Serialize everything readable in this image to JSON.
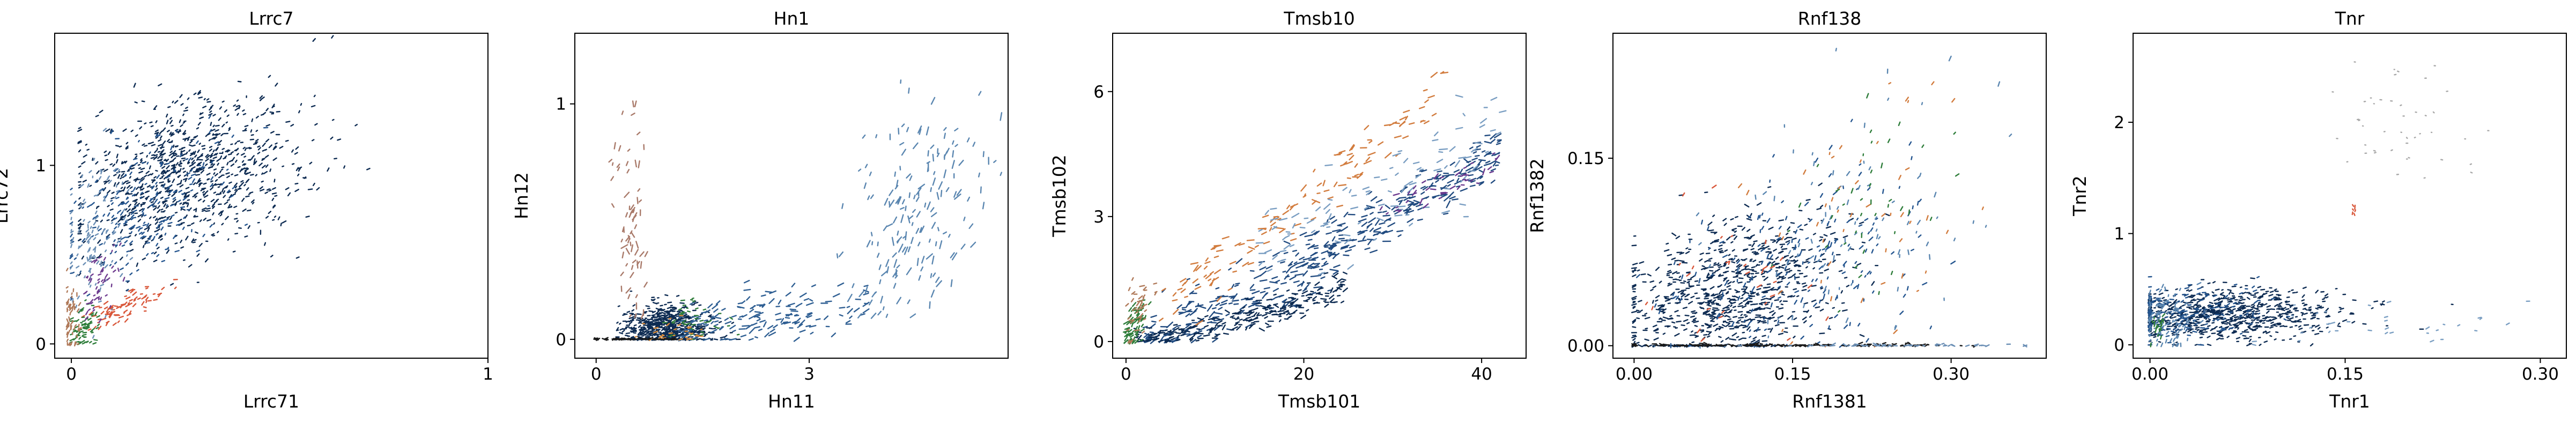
{
  "chart_data": [
    {
      "type": "scatter",
      "title": "Lrrc7",
      "xlabel": "Lrrc71",
      "ylabel": "Lrrc72",
      "xlim": [
        -0.04,
        1.0
      ],
      "ylim": [
        -0.08,
        1.74
      ],
      "xticks": [
        {
          "v": 0,
          "label": "0"
        },
        {
          "v": 1,
          "label": "1"
        }
      ],
      "yticks": [
        {
          "v": 0,
          "label": "0"
        },
        {
          "v": 1,
          "label": "1"
        }
      ],
      "series": [
        {
          "color": "#0d2b52",
          "n": 900,
          "dist": {
            "xc": 0.28,
            "yc": 0.95,
            "sx": 0.13,
            "sy": 0.22,
            "rho": 0.3,
            "xmin": 0.02,
            "xmax": 0.95,
            "ymin": 0.0,
            "ymax": 1.72
          },
          "arrow": {
            "angle": -35,
            "len": 5
          }
        },
        {
          "color": "#24558f",
          "n": 220,
          "dist": {
            "xc": 0.18,
            "yc": 0.78,
            "sx": 0.1,
            "sy": 0.2,
            "rho": 0.4,
            "xmin": 0.0,
            "xmax": 0.6,
            "ymin": 0.0,
            "ymax": 1.5
          },
          "arrow": {
            "angle": -40,
            "len": 5
          }
        },
        {
          "color": "#6b8fb5",
          "n": 120,
          "dist": {
            "xc": 0.06,
            "yc": 0.6,
            "sx": 0.04,
            "sy": 0.22,
            "rho": 0.2,
            "xmin": 0.0,
            "xmax": 0.3,
            "ymin": 0.0,
            "ymax": 1.2
          },
          "arrow": {
            "angle": -60,
            "len": 5
          }
        },
        {
          "color": "#d9573a",
          "n": 80,
          "dist": {
            "xc": 0.12,
            "yc": 0.2,
            "sx": 0.05,
            "sy": 0.06,
            "rho": 0.8,
            "xmin": 0.02,
            "xmax": 0.25,
            "ymin": 0.0,
            "ymax": 0.45
          },
          "arrow": {
            "angle": -30,
            "len": 6
          }
        },
        {
          "color": "#2e7d3a",
          "n": 70,
          "dist": {
            "xc": 0.03,
            "yc": 0.1,
            "sx": 0.02,
            "sy": 0.06,
            "rho": 0.3,
            "xmin": 0.0,
            "xmax": 0.1,
            "ymin": 0.0,
            "ymax": 0.3
          },
          "arrow": {
            "angle": -20,
            "len": 5
          }
        },
        {
          "color": "#6f3c8f",
          "n": 50,
          "dist": {
            "xc": 0.07,
            "yc": 0.35,
            "sx": 0.03,
            "sy": 0.1,
            "rho": 0.5,
            "xmin": 0.0,
            "xmax": 0.18,
            "ymin": 0.1,
            "ymax": 0.6
          },
          "arrow": {
            "angle": -50,
            "len": 5
          }
        },
        {
          "color": "#b07a5a",
          "n": 60,
          "dist": {
            "xc": 0.0,
            "yc": 0.15,
            "sx": 0.01,
            "sy": 0.1,
            "rho": 0.0,
            "xmin": -0.01,
            "xmax": 0.02,
            "ymin": 0.0,
            "ymax": 0.5
          },
          "arrow": {
            "angle": -80,
            "len": 5
          }
        }
      ]
    },
    {
      "type": "scatter",
      "title": "Hn1",
      "xlabel": "Hn11",
      "ylabel": "Hn12",
      "xlim": [
        -0.3,
        5.8
      ],
      "ylim": [
        -0.08,
        1.3
      ],
      "xticks": [
        {
          "v": 0,
          "label": "0"
        },
        {
          "v": 3,
          "label": "3"
        }
      ],
      "yticks": [
        {
          "v": 0,
          "label": "0"
        },
        {
          "v": 1,
          "label": "1"
        }
      ],
      "series": [
        {
          "color": "#0d2b52",
          "n": 650,
          "dist": {
            "xc": 1.0,
            "yc": 0.05,
            "sx": 0.32,
            "sy": 0.05,
            "rho": 0.0,
            "xmin": 0.3,
            "xmax": 2.0,
            "ymin": 0.0,
            "ymax": 0.22
          },
          "arrow": {
            "angle": -10,
            "len": 5
          }
        },
        {
          "color": "#2f5f93",
          "n": 160,
          "dist": {
            "xc": 2.4,
            "yc": 0.1,
            "sx": 0.7,
            "sy": 0.06,
            "rho": 0.5,
            "xmin": 1.2,
            "xmax": 3.8,
            "ymin": 0.0,
            "ymax": 0.35
          },
          "arrow": {
            "angle": -20,
            "len": 9
          }
        },
        {
          "color": "#5a86b0",
          "n": 180,
          "dist": {
            "xc": 4.5,
            "yc": 0.55,
            "sx": 0.45,
            "sy": 0.25,
            "rho": 0.4,
            "xmin": 3.2,
            "xmax": 5.7,
            "ymin": 0.1,
            "ymax": 1.1
          },
          "arrow": {
            "angle": -65,
            "len": 10
          }
        },
        {
          "color": "#a97a6a",
          "n": 70,
          "dist": {
            "xc": 0.5,
            "yc": 0.55,
            "sx": 0.12,
            "sy": 0.25,
            "rho": -0.3,
            "xmin": 0.2,
            "xmax": 0.9,
            "ymin": 0.1,
            "ymax": 1.0
          },
          "arrow": {
            "angle": -70,
            "len": 9
          }
        },
        {
          "color": "#2e7d3a",
          "n": 40,
          "dist": {
            "xc": 1.3,
            "yc": 0.08,
            "sx": 0.25,
            "sy": 0.04,
            "rho": 0.0,
            "xmin": 0.8,
            "xmax": 2.0,
            "ymin": 0.0,
            "ymax": 0.18
          },
          "arrow": {
            "angle": -10,
            "len": 5
          }
        },
        {
          "color": "#d98b3a",
          "n": 30,
          "dist": {
            "xc": 1.1,
            "yc": 0.04,
            "sx": 0.3,
            "sy": 0.03,
            "rho": 0.0,
            "xmin": 0.4,
            "xmax": 1.8,
            "ymin": 0.0,
            "ymax": 0.12
          },
          "arrow": {
            "angle": -5,
            "len": 5
          }
        },
        {
          "color": "#1a1a1a",
          "n": 60,
          "dist": {
            "xc": 0.5,
            "yc": 0.0,
            "sx": 0.4,
            "sy": 0.003,
            "rho": 0.0,
            "xmin": 0.0,
            "xmax": 1.1,
            "ymin": 0.0,
            "ymax": 0.01
          },
          "arrow": {
            "angle": 0,
            "len": 6
          }
        }
      ]
    },
    {
      "type": "scatter",
      "title": "Tmsb10",
      "xlabel": "Tmsb101",
      "ylabel": "Tmsb102",
      "xlim": [
        -1.5,
        45
      ],
      "ylim": [
        -0.4,
        7.4
      ],
      "xticks": [
        {
          "v": 0,
          "label": "0"
        },
        {
          "v": 20,
          "label": "20"
        },
        {
          "v": 40,
          "label": "40"
        }
      ],
      "yticks": [
        {
          "v": 0,
          "label": "0"
        },
        {
          "v": 3,
          "label": "3"
        },
        {
          "v": 6,
          "label": "6"
        }
      ],
      "series": [
        {
          "color": "#214b80",
          "n": 420,
          "trend": {
            "x0": 2,
            "x1": 42,
            "y0": 0.1,
            "y1": 4.6,
            "ysd": 0.35,
            "pow": 1.2
          },
          "arrow": {
            "angle": -20,
            "len": 10
          }
        },
        {
          "color": "#0d2b52",
          "n": 250,
          "trend": {
            "x0": 1,
            "x1": 25,
            "y0": 0.0,
            "y1": 1.3,
            "ysd": 0.18,
            "pow": 1.3
          },
          "arrow": {
            "angle": -15,
            "len": 7
          }
        },
        {
          "color": "#d27c3e",
          "n": 130,
          "trend": {
            "x0": 3,
            "x1": 36,
            "y0": 0.6,
            "y1": 6.0,
            "ysd": 0.35,
            "pow": 1.0
          },
          "arrow": {
            "angle": -28,
            "len": 10
          }
        },
        {
          "color": "#7a9ec2",
          "n": 110,
          "trend": {
            "x0": 15,
            "x1": 44,
            "y0": 2.2,
            "y1": 5.0,
            "ysd": 0.6,
            "pow": 1.0
          },
          "arrow": {
            "angle": -20,
            "len": 10
          }
        },
        {
          "color": "#6b3a8f",
          "n": 40,
          "trend": {
            "x0": 28,
            "x1": 42,
            "y0": 3.0,
            "y1": 4.3,
            "ysd": 0.2,
            "pow": 1.0
          },
          "arrow": {
            "angle": -25,
            "len": 8
          }
        },
        {
          "color": "#2e7d3a",
          "n": 70,
          "dist": {
            "xc": 0.8,
            "yc": 0.35,
            "sx": 0.6,
            "sy": 0.3,
            "rho": 0.6,
            "xmin": 0.0,
            "xmax": 3.0,
            "ymin": 0.0,
            "ymax": 1.3
          },
          "arrow": {
            "angle": -45,
            "len": 7
          }
        },
        {
          "color": "#b07a5a",
          "n": 40,
          "dist": {
            "xc": 1.5,
            "yc": 0.8,
            "sx": 0.8,
            "sy": 0.4,
            "rho": 0.5,
            "xmin": 0.0,
            "xmax": 4.0,
            "ymin": 0.0,
            "ymax": 1.5
          },
          "arrow": {
            "angle": -40,
            "len": 7
          }
        }
      ]
    },
    {
      "type": "scatter",
      "title": "Rnf138",
      "xlabel": "Rnf1381",
      "ylabel": "Rnf1382",
      "xlim": [
        -0.02,
        0.39
      ],
      "ylim": [
        -0.01,
        0.25
      ],
      "xticks": [
        {
          "v": 0,
          "label": "0.00"
        },
        {
          "v": 0.15,
          "label": "0.15"
        },
        {
          "v": 0.3,
          "label": "0.30"
        }
      ],
      "yticks": [
        {
          "v": 0,
          "label": "0.00"
        },
        {
          "v": 0.15,
          "label": "0.15"
        }
      ],
      "series": [
        {
          "color": "#0d2b52",
          "n": 800,
          "dist": {
            "xc": 0.09,
            "yc": 0.04,
            "sx": 0.05,
            "sy": 0.03,
            "rho": 0.35,
            "xmin": 0.0,
            "xmax": 0.3,
            "ymin": 0.0,
            "ymax": 0.2
          },
          "arrow": {
            "angle": -15,
            "len": 6
          }
        },
        {
          "color": "#24558f",
          "n": 200,
          "dist": {
            "xc": 0.16,
            "yc": 0.06,
            "sx": 0.06,
            "sy": 0.04,
            "rho": 0.3,
            "xmin": 0.0,
            "xmax": 0.33,
            "ymin": 0.0,
            "ymax": 0.22
          },
          "arrow": {
            "angle": -55,
            "len": 6
          }
        },
        {
          "color": "#5a86b0",
          "n": 90,
          "dist": {
            "xc": 0.2,
            "yc": 0.09,
            "sx": 0.07,
            "sy": 0.05,
            "rho": 0.3,
            "xmin": 0.02,
            "xmax": 0.36,
            "ymin": 0.0,
            "ymax": 0.24
          },
          "arrow": {
            "angle": -70,
            "len": 6
          }
        },
        {
          "color": "#d27c3e",
          "n": 50,
          "dist": {
            "xc": 0.21,
            "yc": 0.1,
            "sx": 0.05,
            "sy": 0.05,
            "rho": 0.2,
            "xmin": 0.05,
            "xmax": 0.33,
            "ymin": 0.0,
            "ymax": 0.21
          },
          "arrow": {
            "angle": -60,
            "len": 6
          }
        },
        {
          "color": "#2e7d3a",
          "n": 40,
          "dist": {
            "xc": 0.22,
            "yc": 0.11,
            "sx": 0.04,
            "sy": 0.04,
            "rho": 0.2,
            "xmin": 0.08,
            "xmax": 0.33,
            "ymin": 0.02,
            "ymax": 0.2
          },
          "arrow": {
            "angle": -65,
            "len": 6
          }
        },
        {
          "color": "#d9573a",
          "n": 30,
          "dist": {
            "xc": 0.1,
            "yc": 0.05,
            "sx": 0.05,
            "sy": 0.03,
            "rho": 0.2,
            "xmin": 0.0,
            "xmax": 0.25,
            "ymin": 0.0,
            "ymax": 0.15
          },
          "arrow": {
            "angle": -40,
            "len": 6
          }
        },
        {
          "color": "#1a1a1a",
          "n": 160,
          "dist": {
            "xc": 0.14,
            "yc": 0.0,
            "sx": 0.09,
            "sy": 0.0008,
            "rho": 0.0,
            "xmin": 0.0,
            "xmax": 0.36,
            "ymin": 0.0,
            "ymax": 0.002
          },
          "arrow": {
            "angle": 0,
            "len": 6
          }
        },
        {
          "color": "#6b8fb5",
          "n": 60,
          "dist": {
            "xc": 0.25,
            "yc": 0.0,
            "sx": 0.06,
            "sy": 0.0008,
            "rho": 0.0,
            "xmin": 0.1,
            "xmax": 0.37,
            "ymin": 0.0,
            "ymax": 0.002
          },
          "arrow": {
            "angle": 0,
            "len": 5
          }
        }
      ]
    },
    {
      "type": "scatter",
      "title": "Tnr",
      "xlabel": "Tnr1",
      "ylabel": "Tnr2",
      "xlim": [
        -0.013,
        0.32
      ],
      "ylim": [
        -0.12,
        2.8
      ],
      "xticks": [
        {
          "v": 0,
          "label": "0.00"
        },
        {
          "v": 0.15,
          "label": "0.15"
        },
        {
          "v": 0.3,
          "label": "0.30"
        }
      ],
      "yticks": [
        {
          "v": 0,
          "label": "0"
        },
        {
          "v": 1,
          "label": "1"
        },
        {
          "v": 2,
          "label": "2"
        }
      ],
      "series": [
        {
          "color": "#0d2b52",
          "n": 750,
          "dist": {
            "xc": 0.06,
            "yc": 0.28,
            "sx": 0.045,
            "sy": 0.11,
            "rho": 0.1,
            "xmin": 0.0,
            "xmax": 0.29,
            "ymin": 0.0,
            "ymax": 0.75
          },
          "arrow": {
            "angle": -10,
            "len": 5
          }
        },
        {
          "color": "#24558f",
          "n": 180,
          "dist": {
            "xc": 0.03,
            "yc": 0.3,
            "sx": 0.03,
            "sy": 0.12,
            "rho": 0.1,
            "xmin": 0.0,
            "xmax": 0.15,
            "ymin": 0.0,
            "ymax": 0.7
          },
          "arrow": {
            "angle": -15,
            "len": 5
          }
        },
        {
          "color": "#5a86b0",
          "n": 90,
          "dist": {
            "xc": 0.01,
            "yc": 0.25,
            "sx": 0.01,
            "sy": 0.15,
            "rho": 0.0,
            "xmin": 0.0,
            "xmax": 0.05,
            "ymin": 0.0,
            "ymax": 0.7
          },
          "arrow": {
            "angle": -60,
            "len": 5
          }
        },
        {
          "color": "#7a9ec2",
          "n": 35,
          "dist": {
            "xc": 0.18,
            "yc": 0.2,
            "sx": 0.05,
            "sy": 0.1,
            "rho": 0.0,
            "xmin": 0.08,
            "xmax": 0.3,
            "ymin": 0.0,
            "ymax": 0.5
          },
          "arrow": {
            "angle": -10,
            "len": 5
          }
        },
        {
          "color": "#a8a8a8",
          "n": 45,
          "dist": {
            "xc": 0.19,
            "yc": 2.0,
            "sx": 0.03,
            "sy": 0.25,
            "rho": 0.0,
            "xmin": 0.12,
            "xmax": 0.26,
            "ymin": 1.5,
            "ymax": 2.65
          },
          "arrow": {
            "angle": 0,
            "len": 2
          }
        },
        {
          "color": "#d9573a",
          "n": 6,
          "dist": {
            "xc": 0.155,
            "yc": 1.22,
            "sx": 0.002,
            "sy": 0.03,
            "rho": 0.0,
            "xmin": 0.15,
            "xmax": 0.16,
            "ymin": 1.15,
            "ymax": 1.3
          },
          "arrow": {
            "angle": -80,
            "len": 5
          }
        },
        {
          "color": "#2e7d3a",
          "n": 20,
          "dist": {
            "xc": 0.005,
            "yc": 0.15,
            "sx": 0.004,
            "sy": 0.1,
            "rho": 0.0,
            "xmin": 0.0,
            "xmax": 0.02,
            "ymin": 0.0,
            "ymax": 0.4
          },
          "arrow": {
            "angle": -70,
            "len": 5
          }
        }
      ]
    }
  ]
}
